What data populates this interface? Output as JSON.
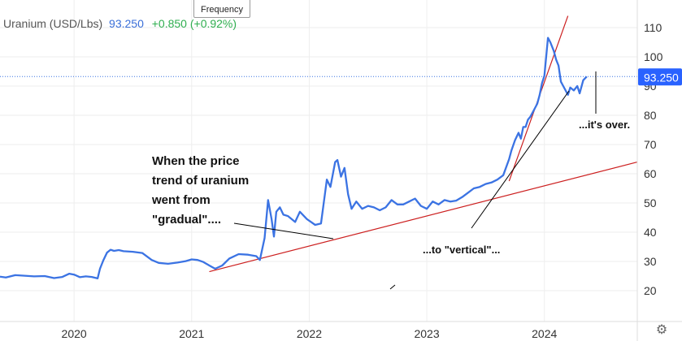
{
  "legend": {
    "symbol": "Uranium (USD/Lbs)",
    "price": "93.250",
    "change": "+0.850 (+0.92%)"
  },
  "tooltip": {
    "label": "Frequency"
  },
  "price_badge": "93.250",
  "icons": {
    "settings": "gear-icon"
  },
  "colors": {
    "line": "#3b73e3",
    "trend": "#cc1f1f",
    "annotation_line": "#000000",
    "badge_bg": "#2962ff",
    "badge_text": "#ffffff",
    "change_text": "#2fae4f",
    "grid": "#eeeeee"
  },
  "chart_data": {
    "type": "line",
    "title": "",
    "xlabel": "",
    "ylabel": "",
    "ylim": [
      13,
      118
    ],
    "y_ticks": [
      20,
      30,
      40,
      50,
      60,
      70,
      80,
      90,
      100,
      110
    ],
    "x_ticks": [
      "2020",
      "2021",
      "2022",
      "2023",
      "2024"
    ],
    "x_tick_values": [
      2020,
      2021,
      2022,
      2023,
      2024
    ],
    "xlim": [
      2019.37,
      2024.79
    ],
    "last_price": 93.25,
    "grid": true,
    "series": [
      {
        "x": [
          2019.37,
          2019.42,
          2019.5,
          2019.58,
          2019.66,
          2019.75,
          2019.83,
          2019.9,
          2019.96,
          2020.0,
          2020.05,
          2020.1,
          2020.15,
          2020.2,
          2020.22,
          2020.25,
          2020.28,
          2020.31,
          2020.34,
          2020.38,
          2020.42,
          2020.5,
          2020.58,
          2020.66,
          2020.72,
          2020.8,
          2020.88,
          2020.95,
          2021.0,
          2021.05,
          2021.1,
          2021.15,
          2021.2,
          2021.26,
          2021.32,
          2021.4,
          2021.48,
          2021.55,
          2021.58,
          2021.62,
          2021.65,
          2021.68,
          2021.7,
          2021.72,
          2021.75,
          2021.78,
          2021.82,
          2021.88,
          2021.92,
          2021.98,
          2022.05,
          2022.1,
          2022.15,
          2022.18,
          2022.22,
          2022.24,
          2022.27,
          2022.3,
          2022.33,
          2022.36,
          2022.4,
          2022.45,
          2022.5,
          2022.55,
          2022.6,
          2022.65,
          2022.7,
          2022.75,
          2022.8,
          2022.85,
          2022.9,
          2022.95,
          2023.0,
          2023.05,
          2023.1,
          2023.15,
          2023.2,
          2023.25,
          2023.3,
          2023.35,
          2023.4,
          2023.45,
          2023.5,
          2023.55,
          2023.6,
          2023.65,
          2023.7,
          2023.72,
          2023.75,
          2023.78,
          2023.8,
          2023.82,
          2023.84,
          2023.86,
          2023.88,
          2023.9,
          2023.92,
          2023.94,
          2023.96,
          2023.98,
          2024.0,
          2024.03,
          2024.05,
          2024.08,
          2024.1,
          2024.12,
          2024.14,
          2024.16,
          2024.2,
          2024.22,
          2024.25,
          2024.28,
          2024.3,
          2024.33,
          2024.36
        ],
        "y": [
          24.8,
          24.5,
          25.3,
          25.1,
          24.9,
          25.0,
          24.3,
          24.7,
          25.8,
          25.5,
          24.6,
          24.9,
          24.7,
          24.2,
          27.5,
          30.5,
          33.0,
          34.0,
          33.6,
          33.9,
          33.5,
          33.3,
          32.9,
          30.5,
          29.5,
          29.2,
          29.6,
          30.1,
          30.7,
          30.5,
          29.8,
          28.6,
          27.5,
          28.6,
          31.0,
          32.5,
          32.3,
          31.8,
          30.5,
          38.0,
          51.0,
          44.5,
          38.5,
          47.0,
          48.5,
          46.0,
          45.5,
          43.5,
          47.0,
          44.5,
          42.5,
          43.0,
          58.0,
          55.5,
          64.0,
          64.7,
          59.0,
          62.0,
          53.0,
          48.0,
          50.5,
          48.0,
          49.0,
          48.5,
          47.5,
          48.5,
          51.0,
          49.5,
          49.5,
          50.5,
          51.5,
          49.0,
          48.0,
          50.5,
          49.5,
          51.0,
          50.5,
          50.8,
          52.0,
          53.5,
          55.0,
          55.5,
          56.5,
          57.0,
          58.0,
          59.5,
          65.0,
          68.0,
          71.5,
          74.0,
          72.0,
          76.0,
          76.0,
          78.5,
          79.5,
          81.0,
          82.5,
          84.0,
          87.0,
          91.0,
          93.5,
          106.5,
          105.0,
          102.0,
          99.0,
          97.0,
          91.5,
          90.0,
          87.0,
          89.5,
          88.5,
          90.0,
          87.5,
          92.0,
          93.25
        ]
      }
    ],
    "annotations": [
      {
        "text": "When the price\ntrend of uranium\nwent from\n\"gradual\"...."
      },
      {
        "text": "...to \"vertical\"..."
      },
      {
        "text": "...it's over."
      }
    ]
  }
}
